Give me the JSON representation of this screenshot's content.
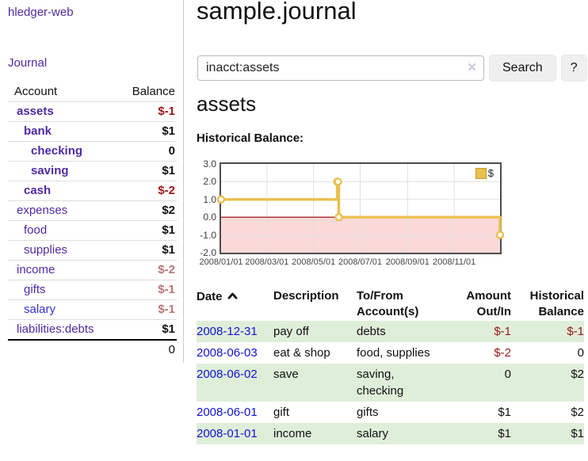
{
  "sidebar": {
    "brand": "hledger-web",
    "nav": {
      "journal": "Journal"
    },
    "accounts": {
      "headers": {
        "account": "Account",
        "balance": "Balance"
      },
      "rows": [
        {
          "name": "assets",
          "balance": "$-1"
        },
        {
          "name": "bank",
          "balance": "$1"
        },
        {
          "name": "checking",
          "balance": "0"
        },
        {
          "name": "saving",
          "balance": "$1"
        },
        {
          "name": "cash",
          "balance": "$-2"
        },
        {
          "name": "expenses",
          "balance": "$2"
        },
        {
          "name": "food",
          "balance": "$1"
        },
        {
          "name": "supplies",
          "balance": "$1"
        },
        {
          "name": "income",
          "balance": "$-2"
        },
        {
          "name": "gifts",
          "balance": "$-1"
        },
        {
          "name": "salary",
          "balance": "$-1"
        },
        {
          "name": "liabilities:debts",
          "balance": "$1"
        }
      ],
      "total": "0"
    }
  },
  "main": {
    "title": "sample.journal",
    "search": {
      "value": "inacct:assets",
      "clear_icon": "✕",
      "button": "Search",
      "help": "?"
    },
    "account_heading": "assets",
    "chart_heading": "Historical Balance:",
    "register": {
      "headers": {
        "date": "Date",
        "description": "Description",
        "tofrom_1": "To/From",
        "tofrom_2": "Account(s)",
        "amount_1": "Amount",
        "amount_2": "Out/In",
        "hist_1": "Historical",
        "hist_2": "Balance"
      },
      "rows": [
        {
          "date": "2008-12-31",
          "description": "pay off",
          "tofrom": "debts",
          "amount": "$-1",
          "balance": "$-1"
        },
        {
          "date": "2008-06-03",
          "description": "eat & shop",
          "tofrom": "food, supplies",
          "amount": "$-2",
          "balance": "0"
        },
        {
          "date": "2008-06-02",
          "description": "save",
          "tofrom": "saving, checking",
          "amount": "0",
          "balance": "$2"
        },
        {
          "date": "2008-06-01",
          "description": "gift",
          "tofrom": "gifts",
          "amount": "$1",
          "balance": "$2"
        },
        {
          "date": "2008-01-01",
          "description": "income",
          "tofrom": "salary",
          "amount": "$1",
          "balance": "$1"
        }
      ]
    }
  },
  "chart_data": {
    "type": "line",
    "step": true,
    "title": "Historical Balance:",
    "series": [
      {
        "name": "$",
        "color": "#e9c04d",
        "points": [
          {
            "date": "2008-01-01",
            "value": 1
          },
          {
            "date": "2008-06-01",
            "value": 2
          },
          {
            "date": "2008-06-02",
            "value": 2
          },
          {
            "date": "2008-06-03",
            "value": 0
          },
          {
            "date": "2008-12-31",
            "value": -1
          }
        ]
      }
    ],
    "xlim": [
      "2008-01-01",
      "2008-12-31"
    ],
    "ylim": [
      -2,
      3
    ],
    "yticks": [
      3,
      2,
      1,
      0,
      -1,
      -2
    ],
    "xticks": [
      {
        "date": "2008-01-01",
        "label": "2008/01/01"
      },
      {
        "date": "2008-03-01",
        "label": "2008/03/01"
      },
      {
        "date": "2008-05-01",
        "label": "2008/05/01"
      },
      {
        "date": "2008-07-01",
        "label": "2008/07/01"
      },
      {
        "date": "2008-09-01",
        "label": "2008/09/01"
      },
      {
        "date": "2008-11-01",
        "label": "2008/11/01"
      }
    ],
    "grid": true,
    "legend_position": "top-right",
    "negative_region_color": "#fad9d9",
    "zero_line_color": "#8b0000"
  }
}
